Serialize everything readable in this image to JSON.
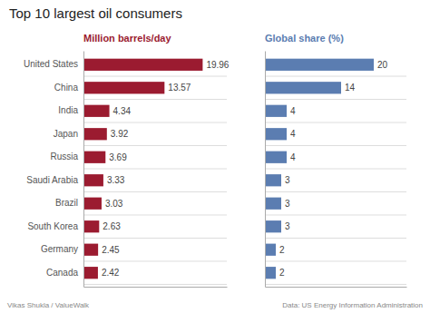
{
  "chart_data": [
    {
      "type": "bar",
      "orientation": "horizontal",
      "title": "Top 10 largest oil consumers",
      "categories": [
        "United States",
        "China",
        "India",
        "Japan",
        "Russia",
        "Saudi Arabia",
        "Brazil",
        "South Korea",
        "Germany",
        "Canada"
      ],
      "series": [
        {
          "name": "Million barrels/day",
          "color": "#9B1B30",
          "values": [
            19.96,
            13.57,
            4.34,
            3.92,
            3.69,
            3.33,
            3.03,
            2.63,
            2.45,
            2.42
          ]
        }
      ],
      "xlim": [
        0,
        24
      ],
      "data_labels": true,
      "tick_labels": "y",
      "grid": true,
      "annotations": [
        "Vikas Shukla / ValueWalk",
        "Data: US Energy Information Administration"
      ]
    },
    {
      "type": "bar",
      "orientation": "horizontal",
      "categories": [
        "United States",
        "China",
        "India",
        "Japan",
        "Russia",
        "Saudi Arabia",
        "Brazil",
        "South Korea",
        "Germany",
        "Canada"
      ],
      "series": [
        {
          "name": "Global share (%)",
          "color": "#5B7DB1",
          "values": [
            20,
            14,
            4,
            4,
            4,
            3,
            3,
            3,
            2,
            2
          ]
        }
      ],
      "xlim": [
        0,
        26
      ],
      "data_labels": true,
      "tick_labels": false,
      "grid": true
    }
  ]
}
